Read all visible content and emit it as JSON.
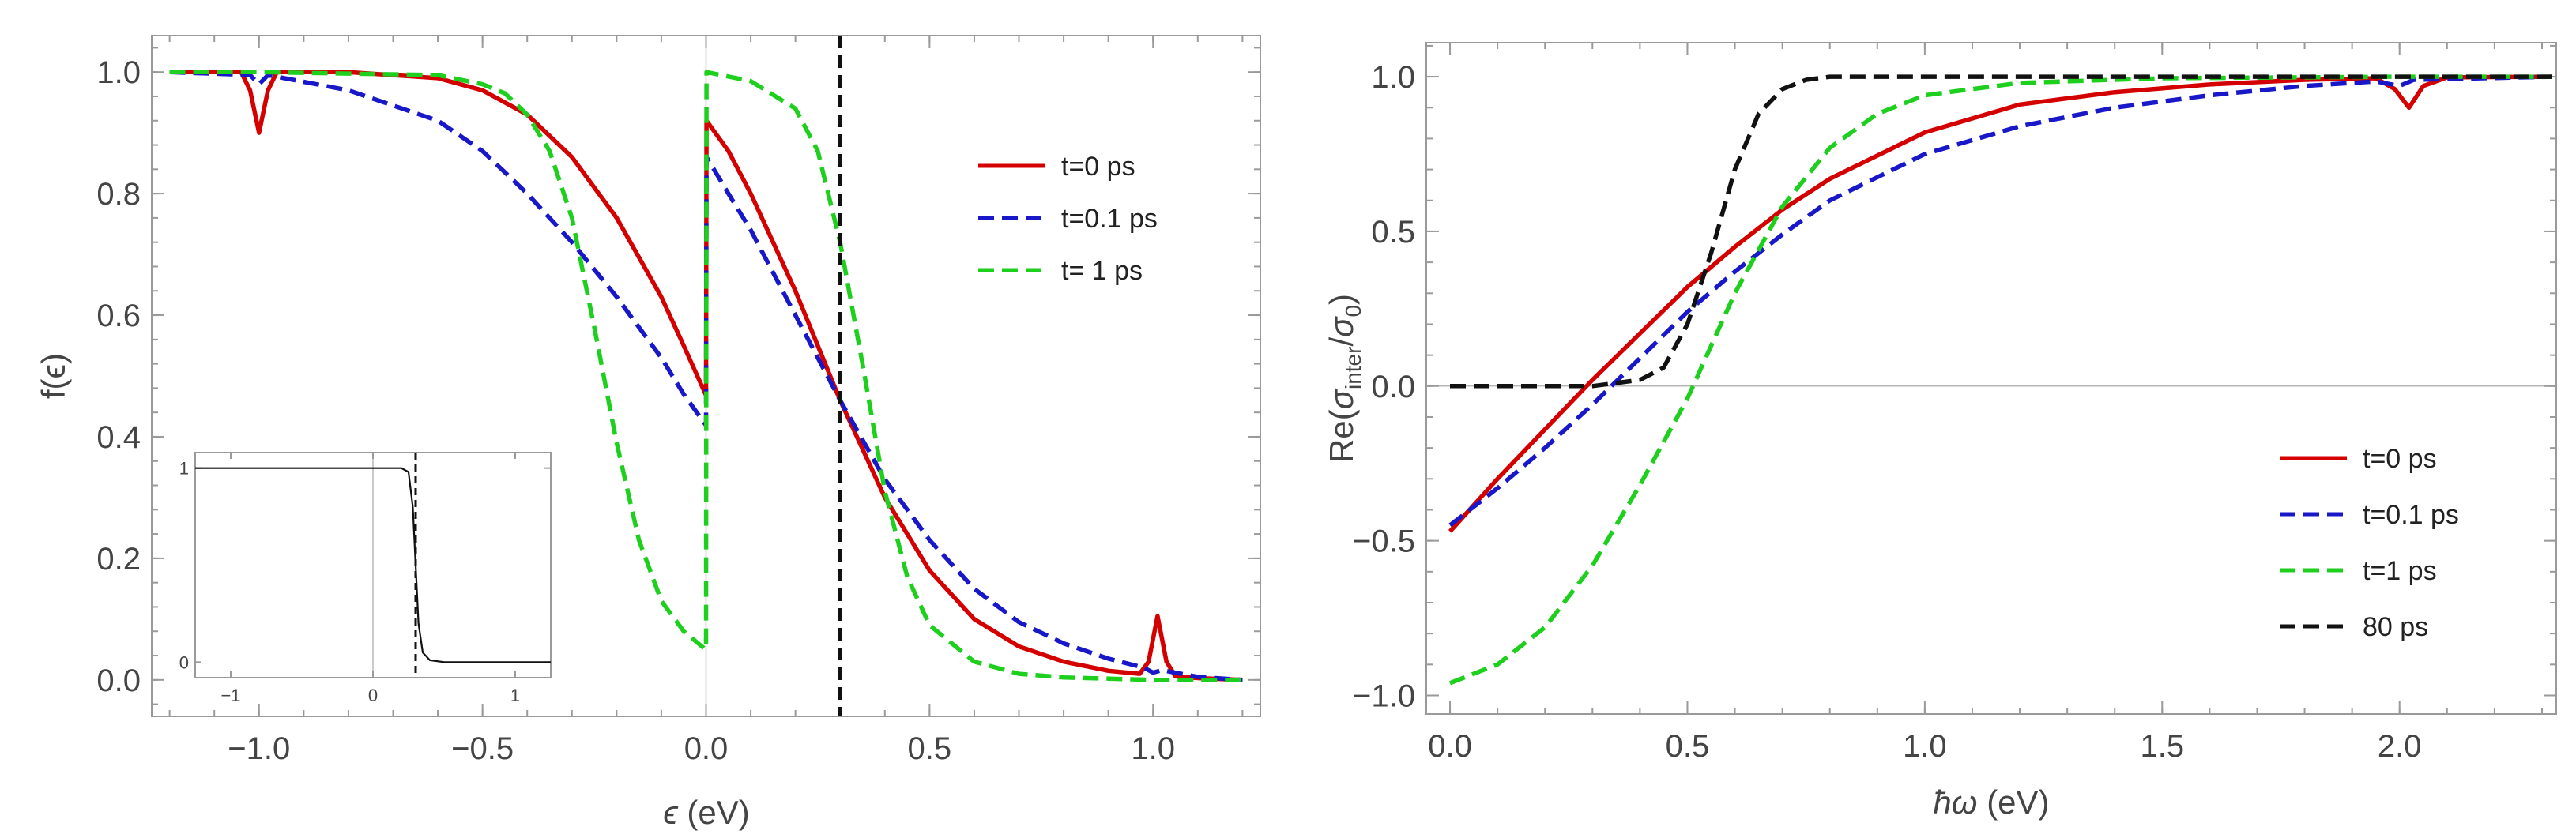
{
  "chart_data": [
    {
      "type": "line",
      "id": "distribution",
      "xlabel_symbol": "ϵ",
      "xlabel_unit": " (eV)",
      "ylabel": "f(ϵ)",
      "xlim": [
        -1.24,
        1.24
      ],
      "ylim": [
        -0.06,
        1.06
      ],
      "xticks": [
        -1.0,
        -0.5,
        0.0,
        0.5,
        1.0
      ],
      "xtick_labels": [
        "−1.0",
        "−0.5",
        "0.0",
        "0.5",
        "1.0"
      ],
      "yticks": [
        0.0,
        0.2,
        0.4,
        0.6,
        0.8,
        1.0
      ],
      "ytick_labels": [
        "0.0",
        "0.2",
        "0.4",
        "0.6",
        "0.8",
        "1.0"
      ],
      "vline_x": 0.3,
      "legend_position": "top-right",
      "series": [
        {
          "name": "t=0 ps",
          "color": "#d40000",
          "dash": "solid",
          "x": [
            -1.2,
            -1.04,
            -1.02,
            -1.0,
            -0.98,
            -0.96,
            -0.8,
            -0.6,
            -0.5,
            -0.4,
            -0.3,
            -0.2,
            -0.1,
            -0.05,
            -0.001,
            0.0,
            0.001,
            0.05,
            0.1,
            0.2,
            0.3,
            0.4,
            0.5,
            0.6,
            0.7,
            0.8,
            0.9,
            0.97,
            0.99,
            1.01,
            1.03,
            1.05,
            1.1,
            1.2
          ],
          "y": [
            1.0,
            1.0,
            0.97,
            0.9,
            0.97,
            1.0,
            1.0,
            0.99,
            0.97,
            0.93,
            0.86,
            0.76,
            0.63,
            0.55,
            0.47,
            0.47,
            0.92,
            0.87,
            0.8,
            0.64,
            0.46,
            0.3,
            0.18,
            0.1,
            0.055,
            0.03,
            0.015,
            0.01,
            0.03,
            0.105,
            0.03,
            0.006,
            0.003,
            0.0
          ]
        },
        {
          "name": "t=0.1 ps",
          "color": "#1818c8",
          "dash": "dashed",
          "x": [
            -1.2,
            -1.02,
            -1.0,
            -0.98,
            -0.8,
            -0.6,
            -0.5,
            -0.4,
            -0.3,
            -0.2,
            -0.1,
            -0.05,
            -0.001,
            0.0,
            0.001,
            0.05,
            0.1,
            0.2,
            0.3,
            0.4,
            0.5,
            0.6,
            0.7,
            0.8,
            0.9,
            0.98,
            1.0,
            1.02,
            1.1,
            1.2
          ],
          "y": [
            1.0,
            0.995,
            0.98,
            0.995,
            0.97,
            0.92,
            0.87,
            0.8,
            0.72,
            0.63,
            0.53,
            0.47,
            0.42,
            0.42,
            0.86,
            0.8,
            0.74,
            0.6,
            0.46,
            0.33,
            0.23,
            0.15,
            0.095,
            0.06,
            0.035,
            0.02,
            0.012,
            0.016,
            0.005,
            0.0
          ]
        },
        {
          "name": "t= 1 ps",
          "color": "#1ecf1e",
          "dash": "dashed",
          "x": [
            -1.2,
            -1.0,
            -0.6,
            -0.5,
            -0.45,
            -0.4,
            -0.35,
            -0.3,
            -0.25,
            -0.2,
            -0.15,
            -0.1,
            -0.05,
            -0.001,
            0.0,
            0.001,
            0.1,
            0.2,
            0.25,
            0.3,
            0.35,
            0.4,
            0.45,
            0.5,
            0.6,
            0.7,
            0.8,
            1.0,
            1.2
          ],
          "y": [
            1.0,
            1.0,
            0.995,
            0.98,
            0.965,
            0.93,
            0.87,
            0.76,
            0.58,
            0.39,
            0.23,
            0.13,
            0.08,
            0.05,
            0.05,
            1.0,
            0.985,
            0.94,
            0.87,
            0.72,
            0.52,
            0.31,
            0.17,
            0.09,
            0.03,
            0.01,
            0.004,
            0.0,
            0.0
          ]
        }
      ],
      "inset": {
        "xlim": [
          -1.25,
          1.25
        ],
        "ylim": [
          -0.08,
          1.08
        ],
        "xticks": [
          -1,
          0,
          1
        ],
        "xtick_labels": [
          "−1",
          "0",
          "1"
        ],
        "yticks": [
          0,
          1
        ],
        "ytick_labels": [
          "0",
          "1"
        ],
        "vline_x": 0.3,
        "series": {
          "color": "#111111",
          "x": [
            -1.25,
            0.2,
            0.25,
            0.28,
            0.3,
            0.32,
            0.35,
            0.4,
            0.5,
            1.25
          ],
          "y": [
            1.0,
            1.0,
            0.98,
            0.8,
            0.5,
            0.2,
            0.05,
            0.01,
            0.0,
            0.0
          ]
        }
      }
    },
    {
      "type": "line",
      "id": "conductivity",
      "xlabel_prefix": "ħω",
      "xlabel_unit": " (eV)",
      "ylabel_prefix": "Re(",
      "ylabel_sigma": "σ",
      "ylabel_sub": "inter",
      "ylabel_slash": "/",
      "ylabel_sigma2": "σ",
      "ylabel_sub2": "0",
      "ylabel_suffix": ")",
      "xlim": [
        -0.05,
        2.33
      ],
      "ylim": [
        -1.06,
        1.11
      ],
      "xticks": [
        0.0,
        0.5,
        1.0,
        1.5,
        2.0
      ],
      "xtick_labels": [
        "0.0",
        "0.5",
        "1.0",
        "1.5",
        "2.0"
      ],
      "yticks": [
        -1.0,
        -0.5,
        0.0,
        0.5,
        1.0
      ],
      "ytick_labels": [
        "−1.0",
        "−0.5",
        "0.0",
        "0.5",
        "1.0"
      ],
      "legend_position": "bottom-right",
      "series": [
        {
          "name": "t=0 ps",
          "color": "#d40000",
          "dash": "solid",
          "x": [
            0.0,
            0.1,
            0.2,
            0.3,
            0.4,
            0.5,
            0.6,
            0.7,
            0.8,
            1.0,
            1.2,
            1.4,
            1.6,
            1.8,
            1.95,
            1.99,
            2.02,
            2.05,
            2.1,
            2.32
          ],
          "y": [
            -0.47,
            -0.3,
            -0.14,
            0.02,
            0.17,
            0.32,
            0.45,
            0.57,
            0.67,
            0.82,
            0.91,
            0.95,
            0.975,
            0.99,
            0.995,
            0.96,
            0.9,
            0.97,
            0.998,
            1.0
          ]
        },
        {
          "name": "t=0.1 ps",
          "color": "#1818c8",
          "dash": "dashed",
          "x": [
            0.0,
            0.1,
            0.2,
            0.3,
            0.4,
            0.5,
            0.6,
            0.7,
            0.8,
            1.0,
            1.2,
            1.4,
            1.6,
            1.8,
            1.95,
            2.0,
            2.03,
            2.32
          ],
          "y": [
            -0.45,
            -0.33,
            -0.2,
            -0.06,
            0.09,
            0.24,
            0.37,
            0.49,
            0.6,
            0.75,
            0.84,
            0.9,
            0.94,
            0.97,
            0.985,
            0.97,
            0.99,
            1.0
          ]
        },
        {
          "name": "t=1 ps",
          "color": "#1ecf1e",
          "dash": "dashed",
          "x": [
            0.0,
            0.1,
            0.2,
            0.3,
            0.4,
            0.5,
            0.6,
            0.7,
            0.8,
            0.9,
            1.0,
            1.2,
            1.5,
            2.0,
            2.32
          ],
          "y": [
            -0.96,
            -0.9,
            -0.78,
            -0.58,
            -0.32,
            -0.04,
            0.3,
            0.58,
            0.77,
            0.88,
            0.94,
            0.98,
            0.995,
            1.0,
            1.0
          ]
        },
        {
          "name": "80 ps",
          "color": "#111111",
          "dash": "dashed",
          "x": [
            0.0,
            0.3,
            0.4,
            0.45,
            0.5,
            0.55,
            0.6,
            0.65,
            0.7,
            0.75,
            0.8,
            0.9,
            1.0,
            2.32
          ],
          "y": [
            0.0,
            0.0,
            0.02,
            0.06,
            0.2,
            0.43,
            0.7,
            0.88,
            0.96,
            0.99,
            1.0,
            1.0,
            1.0,
            1.0
          ]
        }
      ]
    }
  ]
}
